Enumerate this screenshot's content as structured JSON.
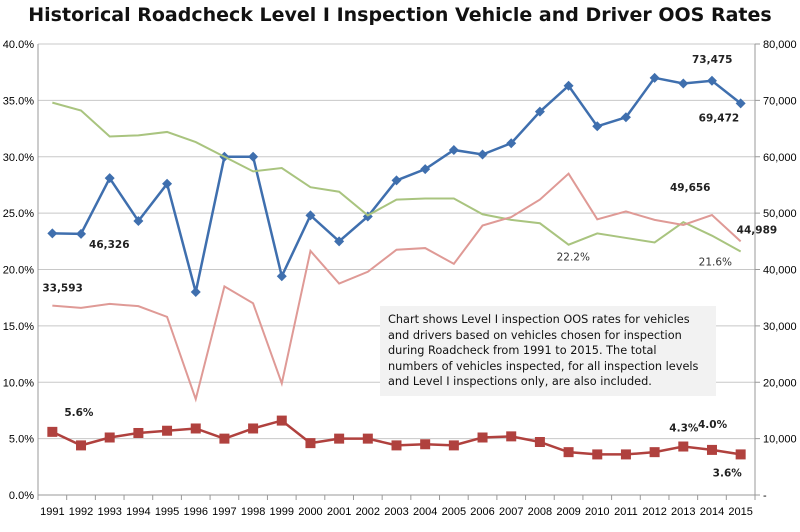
{
  "chart_data": {
    "type": "line",
    "title": "Historical Roadcheck Level I Inspection Vehicle and Driver OOS Rates",
    "categories": [
      "1991",
      "1992",
      "1993",
      "1994",
      "1995",
      "1996",
      "1997",
      "1998",
      "1999",
      "2000",
      "2001",
      "2002",
      "2003",
      "2004",
      "2005",
      "2006",
      "2007",
      "2008",
      "2009",
      "2010",
      "2011",
      "2012",
      "2013",
      "2014",
      "2015"
    ],
    "y_left": {
      "range": [
        0,
        40
      ],
      "ticks": [
        "0.0%",
        "5.0%",
        "10.0%",
        "15.0%",
        "20.0%",
        "25.0%",
        "30.0%",
        "35.0%",
        "40.0%"
      ]
    },
    "y_right": {
      "range": [
        0,
        80000
      ],
      "ticks": [
        "-",
        "10,000",
        "20,000",
        "30,000",
        "40,000",
        "50,000",
        "60,000",
        "70,000",
        "80,000"
      ]
    },
    "grid": true,
    "series": [
      {
        "axis": "right",
        "color": "#3f6fae",
        "marker": "diamond",
        "values": [
          46400,
          46326,
          56200,
          48600,
          55200,
          36000,
          60000,
          60000,
          38800,
          49600,
          45000,
          49400,
          55800,
          57800,
          61200,
          60400,
          62400,
          68000,
          72600,
          65400,
          67000,
          74000,
          73000,
          73475,
          69472
        ]
      },
      {
        "axis": "left",
        "color": "#a9c47f",
        "marker": "none",
        "values": [
          34.8,
          34.1,
          31.8,
          31.9,
          32.2,
          31.3,
          30.0,
          28.7,
          29.0,
          27.3,
          26.9,
          24.8,
          26.2,
          26.3,
          26.3,
          24.9,
          24.4,
          24.1,
          22.2,
          23.2,
          22.8,
          22.4,
          24.2,
          23.0,
          21.6
        ]
      },
      {
        "axis": "right",
        "color": "#df9a96",
        "marker": "none",
        "values": [
          33593,
          33200,
          33900,
          33500,
          31600,
          17000,
          37000,
          34000,
          19800,
          43300,
          37500,
          39600,
          43500,
          43800,
          41000,
          47800,
          49300,
          52400,
          57000,
          48900,
          50300,
          48800,
          47900,
          49656,
          44989
        ]
      },
      {
        "axis": "left",
        "color": "#b0413e",
        "marker": "square",
        "values": [
          5.6,
          4.4,
          5.1,
          5.5,
          5.7,
          5.9,
          5.0,
          5.9,
          6.6,
          4.6,
          5.0,
          5.0,
          4.4,
          4.5,
          4.4,
          5.1,
          5.2,
          4.7,
          3.8,
          3.6,
          3.6,
          3.8,
          4.3,
          4.0,
          3.6
        ]
      }
    ],
    "data_labels": [
      {
        "text": "46,326",
        "series": 0,
        "year": "1992"
      },
      {
        "text": "73,475",
        "series": 0,
        "year": "2014"
      },
      {
        "text": "69,472",
        "series": 0,
        "year": "2015"
      },
      {
        "text": "22.2%",
        "series": 1,
        "year": "2009"
      },
      {
        "text": "21.6%",
        "series": 1,
        "year": "2015"
      },
      {
        "text": "33,593",
        "series": 2,
        "year": "1991"
      },
      {
        "text": "49,656",
        "series": 2,
        "year": "2014"
      },
      {
        "text": "44,989",
        "series": 2,
        "year": "2015"
      },
      {
        "text": "5.6%",
        "series": 3,
        "year": "1991"
      },
      {
        "text": "4.3%",
        "series": 3,
        "year": "2013"
      },
      {
        "text": "4.0%",
        "series": 3,
        "year": "2014"
      },
      {
        "text": "3.6%",
        "series": 3,
        "year": "2015"
      }
    ],
    "annotation": "Chart shows Level I inspection OOS rates for vehicles and drivers based on vehicles chosen for inspection during Roadcheck from 1991 to 2015. The total numbers of vehicles inspected, for all inspection levels and Level I inspections only, are also included."
  }
}
